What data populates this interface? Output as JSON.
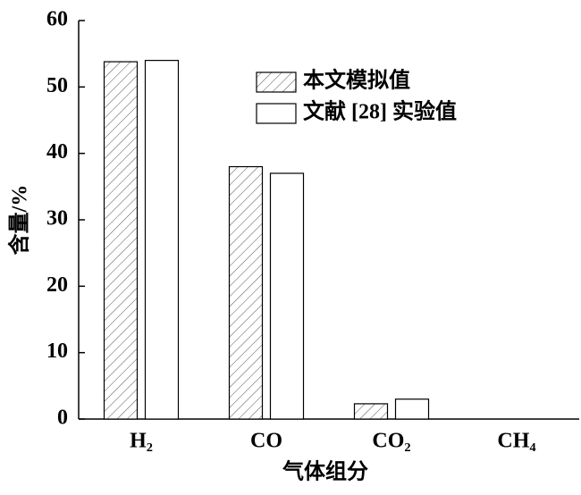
{
  "chart_data": {
    "type": "bar",
    "x_label": "气体组分",
    "y_label": "含量/%",
    "categories": [
      "H₂",
      "CO",
      "CO₂",
      "CH₄"
    ],
    "series": [
      {
        "name": "本文模拟值",
        "color": "#ffffff",
        "pattern": "hatch",
        "values": [
          53.8,
          38.0,
          2.3,
          0
        ]
      },
      {
        "name": "文献 [28] 实验值",
        "color": "#ffffff",
        "pattern": "none",
        "values": [
          54.0,
          37.0,
          3.0,
          0
        ]
      }
    ],
    "ylim": [
      0,
      60
    ],
    "yticks": [
      0,
      10,
      20,
      30,
      40,
      50,
      60
    ],
    "grid": false,
    "legend": "top-right"
  }
}
